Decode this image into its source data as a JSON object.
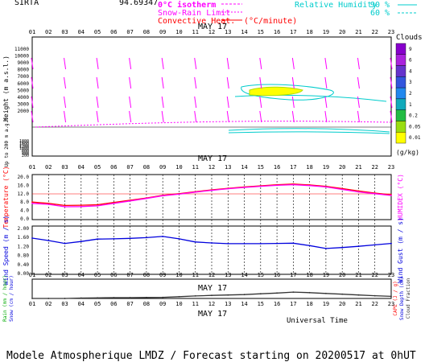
{
  "header": {
    "site": "SIRTA",
    "code": "94.69347",
    "legend_0c": "0°C isotherm",
    "legend_snow": "Snow-Rain Limit",
    "legend_conv": "Convective Heat.",
    "legend_unit": "(°C/minute)",
    "legend_rh": "Relative Humidity",
    "rh_90": "90 %",
    "rh_60": "60 %",
    "colors": {
      "magenta": "#ff00ff",
      "cyan": "#00cccc",
      "red": "#ff0000"
    }
  },
  "hours": [
    "01",
    "02",
    "03",
    "04",
    "05",
    "06",
    "07",
    "08",
    "09",
    "10",
    "11",
    "12",
    "13",
    "14",
    "15",
    "16",
    "17",
    "18",
    "19",
    "20",
    "21",
    "22",
    "23"
  ],
  "date_label": "MAY 17",
  "panel_wind_profile": {
    "ylabel": "Height  (m a.s.l.)",
    "ylabel2": "Up to 200 m a.g.l.",
    "yticks_upper": [
      "11000",
      "10000",
      "9000",
      "8000",
      "7000",
      "6000",
      "5000",
      "4000",
      "3000",
      "2000"
    ],
    "yticks_lower": [
      "1800",
      "1600",
      "1400",
      "1200",
      "1000",
      "800",
      "600",
      "400",
      "200"
    ]
  },
  "clouds_legend": {
    "title": "Clouds",
    "labels": [
      "9",
      "6",
      "4",
      "3",
      "2",
      "1",
      "0.2",
      "0.05",
      "0.01"
    ],
    "unit": "(g/kg)",
    "colors": [
      "#8800cc",
      "#aa22dd",
      "#6633cc",
      "#3355dd",
      "#2288ee",
      "#11aabb",
      "#22bb44",
      "#99dd11",
      "#ffff00"
    ]
  },
  "panel_temp": {
    "ylabel": "Temperature (°C)",
    "ylabel_right": "HUMIDEX (°C)",
    "yticks": [
      "0.0",
      "4.0",
      "8.0",
      "12.0",
      "16.0",
      "20.0"
    ]
  },
  "panel_wind": {
    "ylabel": "Wind Speed (m / s)",
    "ylabel_right": "Wind Gust (m / s)",
    "yticks": [
      "0.00",
      "0.40",
      "0.80",
      "1.20",
      "1.60",
      "2.00"
    ]
  },
  "panel_rain": {
    "ylabel_a": "Rain (mm / hour)",
    "ylabel_b": "Snow (cm / hour)",
    "ylabel_right_a": "CAPE (J / g)",
    "ylabel_right_b": "Snow Depth (cm)",
    "ylabel_right_c": "Cloud Fraction"
  },
  "xlabel": "Universal Time",
  "footer": "Modele Atmospherique LMDZ / Forecast starting on 20200517 at 0hUT",
  "chart_data": [
    {
      "type": "line",
      "title": "Temperature / HUMIDEX",
      "categories": [
        "01",
        "02",
        "03",
        "04",
        "05",
        "06",
        "07",
        "08",
        "09",
        "10",
        "11",
        "12",
        "13",
        "14",
        "15",
        "16",
        "17",
        "18",
        "19",
        "20",
        "21",
        "22",
        "23"
      ],
      "ylim": [
        0,
        20
      ],
      "series": [
        {
          "name": "Temperature",
          "color": "#ff0000",
          "values": [
            7.8,
            7.2,
            6.3,
            6.4,
            6.6,
            7.6,
            8.6,
            9.6,
            10.8,
            11.5,
            12.4,
            13.2,
            13.9,
            14.5,
            15.0,
            15.5,
            15.8,
            15.4,
            14.8,
            13.8,
            12.7,
            11.8,
            11.0
          ]
        },
        {
          "name": "HUMIDEX",
          "color": "#ff00ff",
          "values": [
            7.2,
            6.8,
            5.7,
            5.8,
            6.1,
            7.2,
            8.3,
            9.4,
            10.6,
            11.3,
            12.2,
            13.0,
            13.7,
            14.3,
            14.8,
            15.2,
            15.5,
            15.1,
            14.5,
            13.4,
            12.3,
            11.5,
            10.7
          ]
        }
      ]
    },
    {
      "type": "line",
      "title": "Wind Speed",
      "categories": [
        "01",
        "02",
        "03",
        "04",
        "05",
        "06",
        "07",
        "08",
        "09",
        "10",
        "11",
        "12",
        "13",
        "14",
        "15",
        "16",
        "17",
        "18",
        "19",
        "20",
        "21",
        "22",
        "23"
      ],
      "ylim": [
        0,
        2
      ],
      "series": [
        {
          "name": "Wind Speed",
          "color": "#0000dd",
          "values": [
            1.5,
            1.4,
            1.28,
            1.36,
            1.46,
            1.47,
            1.49,
            1.52,
            1.57,
            1.47,
            1.34,
            1.3,
            1.27,
            1.27,
            1.27,
            1.28,
            1.29,
            1.19,
            1.07,
            1.11,
            1.16,
            1.22,
            1.28
          ]
        }
      ]
    },
    {
      "type": "line",
      "title": "Rain / Cloud Fraction",
      "categories": [
        "01",
        "02",
        "03",
        "04",
        "05",
        "06",
        "07",
        "08",
        "09",
        "10",
        "11",
        "12",
        "13",
        "14",
        "15",
        "16",
        "17",
        "18",
        "19",
        "20",
        "21",
        "22",
        "23"
      ],
      "ylim": [
        0,
        1
      ],
      "series": [
        {
          "name": "Cloud Fraction",
          "color": "#333333",
          "values": [
            0.0,
            0.0,
            0.0,
            0.02,
            0.03,
            0.04,
            0.04,
            0.05,
            0.06,
            0.09,
            0.13,
            0.16,
            0.18,
            0.2,
            0.24,
            0.28,
            0.33,
            0.3,
            0.26,
            0.22,
            0.18,
            0.14,
            0.11
          ]
        }
      ]
    }
  ]
}
